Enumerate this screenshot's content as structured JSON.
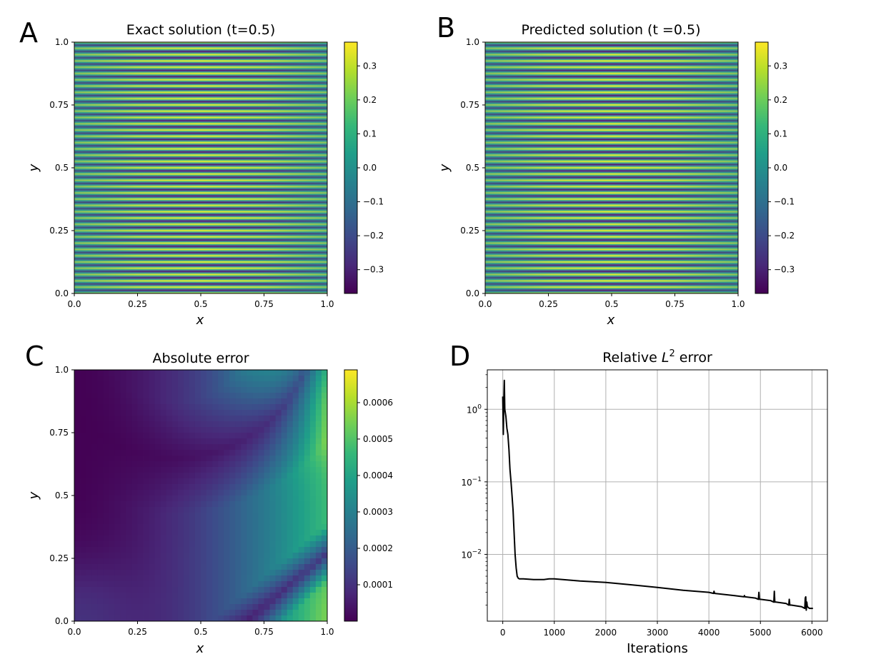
{
  "chart_data": [
    {
      "panel": "A",
      "type": "heatmap",
      "title": "Exact solution (t=0.5)",
      "xlabel": "x",
      "ylabel": "y",
      "xlim": [
        0.0,
        1.0
      ],
      "ylim": [
        0.0,
        1.0
      ],
      "xticks": [
        "0.0",
        "0.25",
        "0.5",
        "0.75",
        "1.0"
      ],
      "yticks": [
        "0.0",
        "0.25",
        "0.5",
        "0.75",
        "1.0"
      ],
      "colormap": "viridis",
      "colorbar_range": [
        -0.37,
        0.37
      ],
      "colorbar_ticks": [
        "−0.3",
        "−0.2",
        "−0.1",
        "0.0",
        "0.1",
        "0.2",
        "0.3"
      ],
      "colorbar_values": [
        -0.3,
        -0.2,
        -0.1,
        0.0,
        0.1,
        0.2,
        0.3
      ],
      "stripe_count": 40,
      "peak_x": 0.5
    },
    {
      "panel": "B",
      "type": "heatmap",
      "title": "Predicted solution (t =0.5)",
      "xlabel": "x",
      "ylabel": "y",
      "xlim": [
        0.0,
        1.0
      ],
      "ylim": [
        0.0,
        1.0
      ],
      "xticks": [
        "0.0",
        "0.25",
        "0.5",
        "0.75",
        "1.0"
      ],
      "yticks": [
        "0.0",
        "0.25",
        "0.5",
        "0.75",
        "1.0"
      ],
      "colormap": "viridis",
      "colorbar_range": [
        -0.37,
        0.37
      ],
      "colorbar_ticks": [
        "−0.3",
        "−0.2",
        "−0.1",
        "0.0",
        "0.1",
        "0.2",
        "0.3"
      ],
      "colorbar_values": [
        -0.3,
        -0.2,
        -0.1,
        0.0,
        0.1,
        0.2,
        0.3
      ],
      "stripe_count": 40,
      "peak_x": 0.5
    },
    {
      "panel": "C",
      "type": "heatmap",
      "title": "Absolute error",
      "xlabel": "x",
      "ylabel": "y",
      "xlim": [
        0.0,
        1.0
      ],
      "ylim": [
        0.0,
        1.0
      ],
      "xticks": [
        "0.0",
        "0.25",
        "0.5",
        "0.75",
        "1.0"
      ],
      "yticks": [
        "0.0",
        "0.25",
        "0.5",
        "0.75",
        "1.0"
      ],
      "colormap": "viridis",
      "colorbar_range": [
        0.0,
        0.00069
      ],
      "colorbar_ticks": [
        "0.0001",
        "0.0002",
        "0.0003",
        "0.0004",
        "0.0005",
        "0.0006"
      ],
      "colorbar_values": [
        0.0001,
        0.0002,
        0.0003,
        0.0004,
        0.0005,
        0.0006
      ]
    },
    {
      "panel": "D",
      "type": "line",
      "title": "Relative L² error",
      "title_base": "Relative ",
      "title_var": "L",
      "title_sup": "2",
      "title_end": " error",
      "xlabel": "Iterations",
      "ylabel": "",
      "yscale": "log",
      "xlim": [
        -300,
        6300
      ],
      "ylim": [
        0.0012,
        3.5
      ],
      "xticks": [
        0,
        1000,
        2000,
        3000,
        4000,
        5000,
        6000
      ],
      "xtick_labels": [
        "0",
        "1000",
        "2000",
        "3000",
        "4000",
        "5000",
        "6000"
      ],
      "yticks": [
        1,
        0.1,
        0.01
      ],
      "ytick_bases": [
        "10",
        "10",
        "10"
      ],
      "ytick_exps": [
        "0",
        "−1",
        "−2"
      ],
      "grid": true,
      "line_color": "#000000",
      "series": [
        {
          "x": [
            0,
            10,
            20,
            30,
            40,
            50,
            60,
            80,
            100,
            120,
            140,
            160,
            180,
            200,
            220,
            240,
            260,
            280,
            300,
            320,
            340,
            360,
            400,
            500,
            600,
            700,
            800,
            900,
            1000,
            1500,
            2000,
            2500,
            3000,
            3500,
            4000,
            4090,
            4100,
            4110,
            4500,
            4680,
            4690,
            4700,
            4900,
            4960,
            4970,
            4980,
            5000,
            5200,
            5260,
            5270,
            5280,
            5300,
            5500,
            5550,
            5560,
            5570,
            5600,
            5800,
            5860,
            5870,
            5880,
            5890,
            5900,
            5910,
            5950,
            6000,
            6020
          ],
          "y": [
            1.5,
            0.45,
            1.3,
            2.5,
            1.0,
            0.9,
            0.8,
            0.55,
            0.45,
            0.28,
            0.15,
            0.1,
            0.065,
            0.04,
            0.02,
            0.01,
            0.0065,
            0.005,
            0.0047,
            0.0046,
            0.0046,
            0.0046,
            0.0046,
            0.00455,
            0.0045,
            0.0045,
            0.0045,
            0.0046,
            0.0046,
            0.0043,
            0.0041,
            0.0038,
            0.0035,
            0.0032,
            0.003,
            0.0029,
            0.0031,
            0.0029,
            0.0027,
            0.0026,
            0.0027,
            0.0026,
            0.0025,
            0.0024,
            0.003,
            0.0024,
            0.0024,
            0.0023,
            0.0022,
            0.0031,
            0.0022,
            0.0022,
            0.0021,
            0.002,
            0.0024,
            0.002,
            0.002,
            0.0019,
            0.0018,
            0.0025,
            0.0026,
            0.0017,
            0.0022,
            0.0019,
            0.0018,
            0.0018,
            0.0018
          ]
        }
      ]
    }
  ]
}
